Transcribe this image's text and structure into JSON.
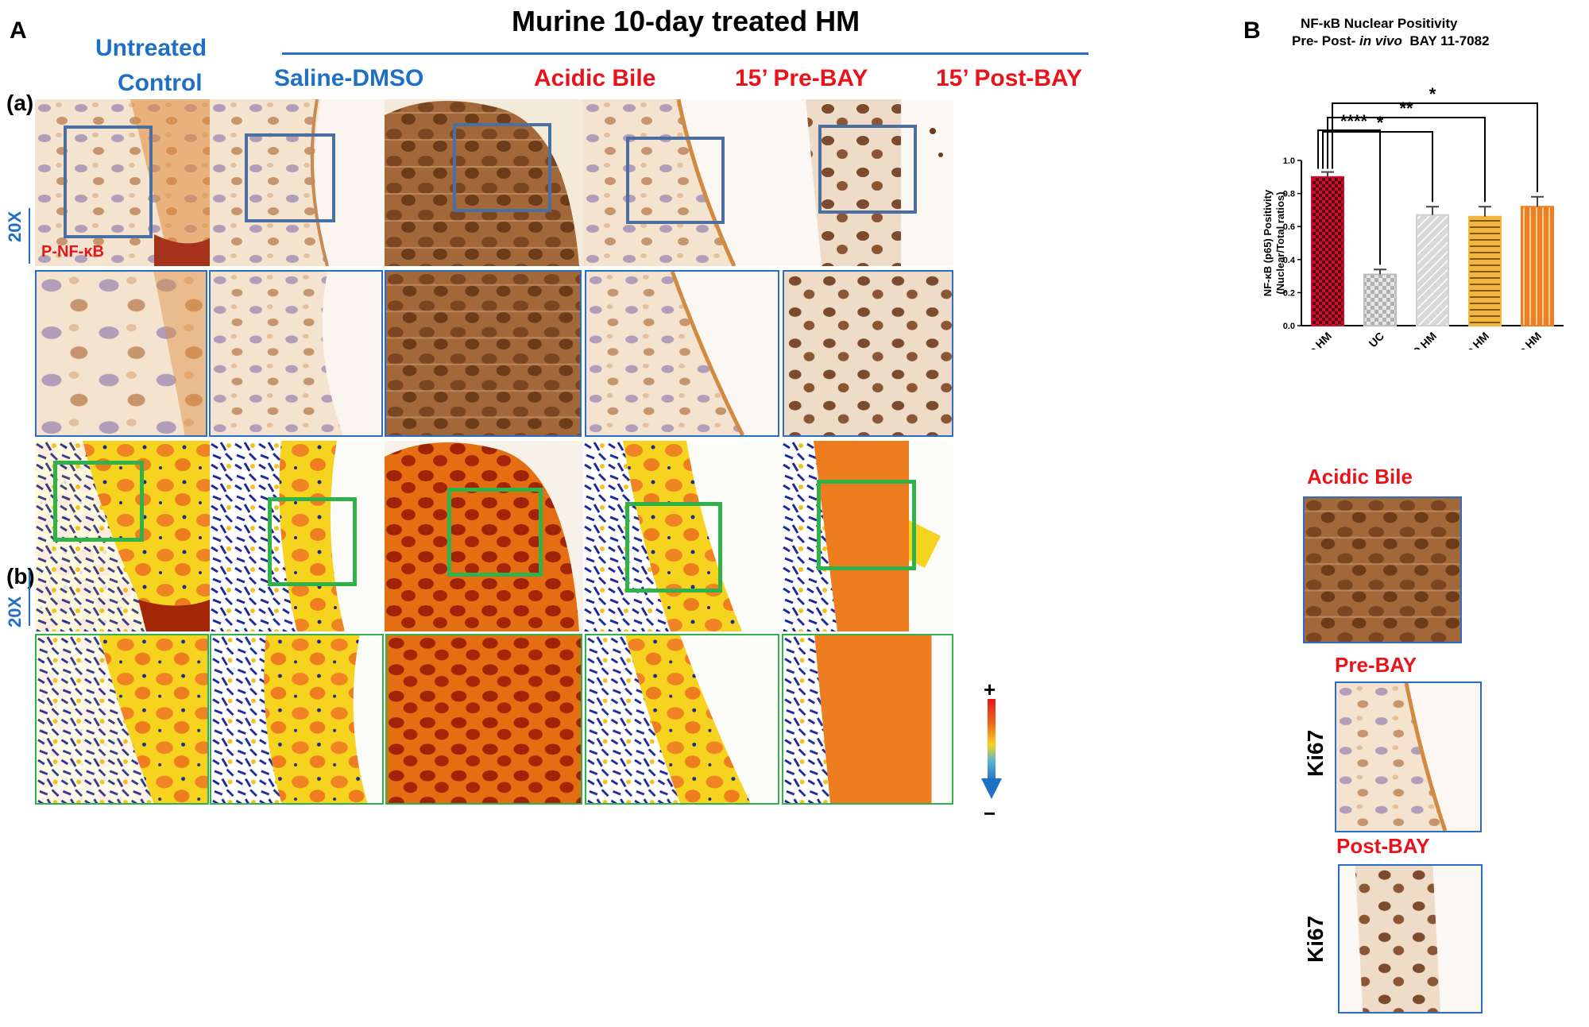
{
  "panel_labels": {
    "A": "A",
    "B": "B",
    "a": "(a)",
    "b": "(b)"
  },
  "header": {
    "title": "Murine 10-day treated HM"
  },
  "columns": {
    "untreated_line1": "Untreated",
    "untreated_line2": "Control",
    "saline": "Saline-DMSO",
    "acidic": "Acidic Bile",
    "prebay": "15’ Pre-BAY",
    "postbay": "15’ Post-BAY"
  },
  "magnification": {
    "row_a": "20X",
    "row_b": "20X"
  },
  "stain_label": "P-NF-κB",
  "colorbar": {
    "plus": "+",
    "minus": "−"
  },
  "chart_data": {
    "type": "bar",
    "title_line1": "NF-κB Nuclear Positivity",
    "title_line2_prefix": "Pre- Post- ",
    "title_line2_italic": "in vivo",
    "title_line2_suffix": "  BAY 11-7082",
    "ylabel_line1": "NF-κB (p65) Positivity",
    "ylabel_line2": "(Nuclear/Total ratios)",
    "ylim": [
      0,
      1.0
    ],
    "yticks": [
      "0.0",
      "0.2",
      "0.4",
      "0.6",
      "0.8",
      "1.0"
    ],
    "categories": [
      "Acidic Bile HM",
      "UC",
      "DMSO HM",
      "Pre-BAY In vivo HM",
      "Post-BAY In vivo HM"
    ],
    "values": [
      0.9,
      0.31,
      0.67,
      0.66,
      0.72
    ],
    "errors": [
      0.03,
      0.03,
      0.05,
      0.06,
      0.06
    ],
    "colors": [
      "#c8102e",
      "#bdbdbd",
      "#d0d0d0",
      "#f2b63c",
      "#f07d1f"
    ],
    "significance": [
      "****",
      "*",
      "**",
      "*"
    ]
  },
  "ki67": {
    "label": "Ki67",
    "acidic_title": "Acidic Bile",
    "prebay_title": "Pre-BAY",
    "postbay_title": "Post-BAY"
  },
  "colors": {
    "blue_label": "#1f6fc5",
    "red_label": "#e8141c",
    "header_line": "#2b6cc4"
  }
}
